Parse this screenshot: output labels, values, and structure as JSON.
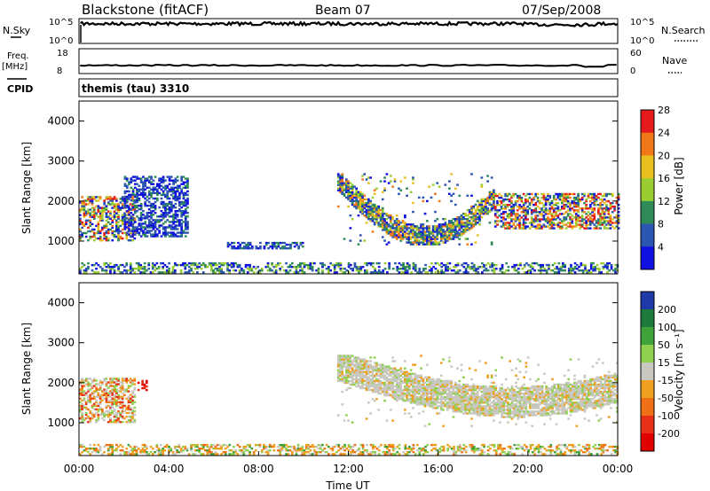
{
  "header": {
    "station": "Blackstone (fitACF)",
    "beam": "Beam 07",
    "date": "07/Sep/2008"
  },
  "labels": {
    "nsky": "N.Sky",
    "nsearch": "N.Search",
    "freq": "Freq.",
    "freq_unit": "[MHz]",
    "nave": "Nave",
    "cpid": "CPID",
    "cpid_value": "themis (tau) 3310",
    "xlabel": "Time UT",
    "ylabel": "Slant Range [km]",
    "power_label": "Power [dB]",
    "velocity_label": "Velocity [m s⁻¹]"
  },
  "chart_data": [
    {
      "type": "line",
      "panel": "noise",
      "left_ticks": [
        "10^5",
        "10^0"
      ],
      "right_ticks": [
        "10^5",
        "10^0"
      ],
      "series": [
        {
          "name": "N.Sky",
          "description_values": "near top of scale throughout, after 00:04"
        },
        {
          "name": "N.Search",
          "description_values": "near top of scale throughout"
        }
      ]
    },
    {
      "type": "line",
      "panel": "freq-nave",
      "left_ticks": [
        18,
        8
      ],
      "right_ticks": [
        60,
        0
      ],
      "series": [
        {
          "name": "Freq.",
          "value_mhz": 10
        },
        {
          "name": "Nave",
          "value": 20
        }
      ]
    },
    {
      "type": "heatmap",
      "panel": "power",
      "x_ticks": [
        "00:00",
        "04:00",
        "08:00",
        "12:00",
        "16:00",
        "20:00",
        "00:00"
      ],
      "x_range_hours": [
        0,
        24
      ],
      "y_ticks": [
        1000,
        2000,
        3000,
        4000
      ],
      "y_range_km": [
        180,
        4500
      ],
      "colorbar_ticks": [
        4,
        8,
        12,
        16,
        20,
        24,
        28
      ],
      "colorbar_colors": [
        "#1010e0",
        "#2a55b0",
        "#2e8b57",
        "#9acd32",
        "#e8c020",
        "#f07818",
        "#e41a1c"
      ],
      "echo_regions": [
        {
          "t0": 0.0,
          "t1": 2.5,
          "r0": 1000,
          "r1": 2100,
          "level": "high"
        },
        {
          "t0": 2.0,
          "t1": 4.8,
          "r0": 1100,
          "r1": 2600,
          "level": "low"
        },
        {
          "t0": 6.5,
          "t1": 10.0,
          "r0": 800,
          "r1": 950,
          "level": "low"
        },
        {
          "t0": 0.0,
          "t1": 24.0,
          "r0": 200,
          "r1": 450,
          "level": "ground"
        },
        {
          "t0": 11.5,
          "t1": 18.5,
          "r0": 900,
          "r1": 2700,
          "level": "arc"
        },
        {
          "t0": 18.5,
          "t1": 24.0,
          "r0": 1300,
          "r1": 2200,
          "level": "high"
        }
      ]
    },
    {
      "type": "heatmap",
      "panel": "velocity",
      "x_ticks": [
        "00:00",
        "04:00",
        "08:00",
        "12:00",
        "16:00",
        "20:00",
        "00:00"
      ],
      "x_range_hours": [
        0,
        24
      ],
      "y_ticks": [
        1000,
        2000,
        3000,
        4000
      ],
      "y_range_km": [
        180,
        4500
      ],
      "colorbar_ticks": [
        200,
        100,
        50,
        15,
        -15,
        -50,
        -100,
        -200
      ],
      "colorbar_colors": [
        "#1f3aa8",
        "#1e7a3c",
        "#3fa33a",
        "#8fd14f",
        "#c8c8c0",
        "#f0a020",
        "#f07018",
        "#e83018",
        "#e00000"
      ],
      "echo_regions": [
        {
          "t0": 0.0,
          "t1": 2.5,
          "r0": 1000,
          "r1": 2100,
          "level": "mixed"
        },
        {
          "t0": 2.6,
          "t1": 3.0,
          "r0": 1800,
          "r1": 2050,
          "level": "strong-neg"
        },
        {
          "t0": 0.0,
          "t1": 24.0,
          "r0": 200,
          "r1": 450,
          "level": "ground"
        },
        {
          "t0": 11.5,
          "t1": 24.0,
          "r0": 900,
          "r1": 2700,
          "level": "grey"
        }
      ]
    }
  ]
}
